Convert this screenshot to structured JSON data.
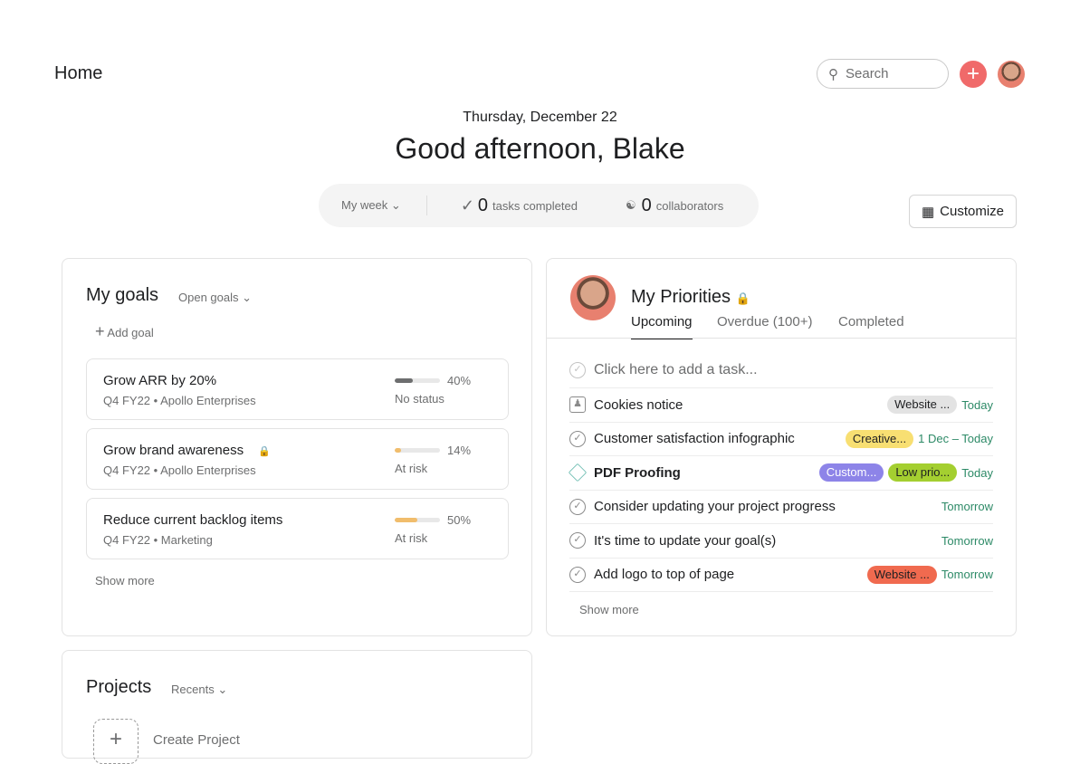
{
  "header": {
    "title": "Home",
    "search_placeholder": "Search",
    "add_icon": "plus-icon"
  },
  "greeting": {
    "date": "Thursday, December 22",
    "text": "Good afternoon, Blake"
  },
  "stats": {
    "period": "My week",
    "tasks_count": "0",
    "tasks_label": "tasks completed",
    "collab_count": "0",
    "collab_label": "collaborators"
  },
  "customize_label": "Customize",
  "goals": {
    "title": "My goals",
    "filter": "Open goals",
    "add": "Add goal",
    "show_more": "Show more",
    "items": [
      {
        "name": "Grow ARR by 20%",
        "meta": "Q4 FY22 • Apollo Enterprises",
        "progress": 40,
        "pct": "40%",
        "status": "No status",
        "color": "#6d6e6f",
        "locked": false
      },
      {
        "name": "Grow brand awareness",
        "meta": "Q4 FY22 • Apollo Enterprises",
        "progress": 14,
        "pct": "14%",
        "status": "At risk",
        "color": "#f1bd6c",
        "locked": true
      },
      {
        "name": "Reduce current backlog items",
        "meta": "Q4 FY22 • Marketing",
        "progress": 50,
        "pct": "50%",
        "status": "At risk",
        "color": "#f1bd6c",
        "locked": false
      }
    ]
  },
  "priorities": {
    "title": "My Priorities",
    "tabs": [
      "Upcoming",
      "Overdue (100+)",
      "Completed"
    ],
    "add_task": "Click here to add a task...",
    "show_more": "Show more",
    "tasks": [
      {
        "name": "Cookies notice",
        "tags": [
          {
            "label": "Website ...",
            "bg": "#e3e3e3",
            "fg": "#1e1f21"
          }
        ],
        "due": "Today",
        "icon": "approval-icon"
      },
      {
        "name": "Customer satisfaction infographic",
        "tags": [
          {
            "label": "Creative...",
            "bg": "#f8df72",
            "fg": "#1e1f21"
          }
        ],
        "due": "1 Dec – Today",
        "icon": "check-circle-icon"
      },
      {
        "name": "PDF Proofing",
        "tags": [
          {
            "label": "Custom...",
            "bg": "#8d84e8",
            "fg": "#fff"
          },
          {
            "label": "Low prio...",
            "bg": "#a4cf30",
            "fg": "#1e1f21"
          }
        ],
        "due": "Today",
        "icon": "milestone-icon"
      },
      {
        "name": "Consider updating your project progress",
        "tags": [],
        "due": "Tomorrow",
        "icon": "check-circle-icon"
      },
      {
        "name": "It's time to update your goal(s)",
        "tags": [],
        "due": "Tomorrow",
        "icon": "check-circle-icon"
      },
      {
        "name": "Add logo to top of page",
        "tags": [
          {
            "label": "Website ...",
            "bg": "#f06a4f",
            "fg": "#1e1f21"
          }
        ],
        "due": "Tomorrow",
        "icon": "check-circle-icon"
      }
    ]
  },
  "projects": {
    "title": "Projects",
    "filter": "Recents",
    "create": "Create Project"
  }
}
